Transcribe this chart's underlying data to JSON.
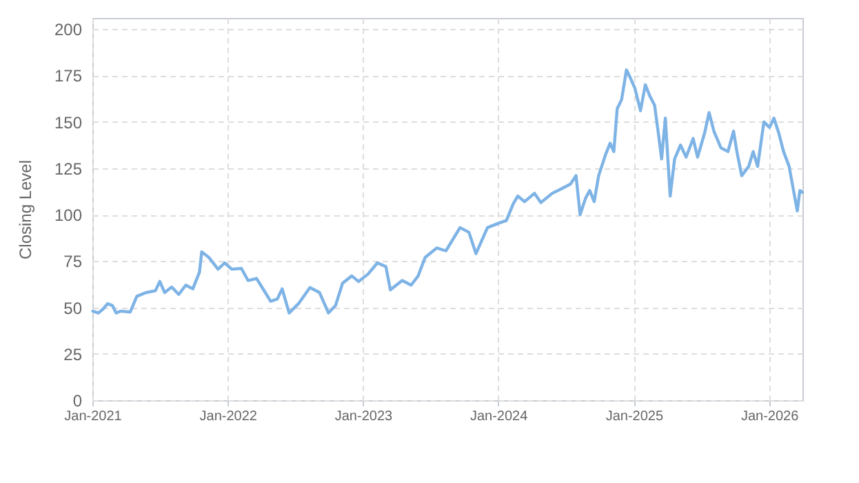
{
  "chart_data": {
    "type": "line",
    "ylabel": "Closing Level",
    "x": [
      "2021-01-02",
      "2021-01-17",
      "2021-01-29",
      "2021-02-11",
      "2021-02-24",
      "2021-03-06",
      "2021-03-18",
      "2021-04-13",
      "2021-05-01",
      "2021-05-26",
      "2021-06-20",
      "2021-07-02",
      "2021-07-15",
      "2021-08-03",
      "2021-08-22",
      "2021-09-10",
      "2021-09-29",
      "2021-10-17",
      "2021-10-23",
      "2021-11-11",
      "2021-12-06",
      "2021-12-24",
      "2022-01-12",
      "2022-02-07",
      "2022-02-25",
      "2022-03-20",
      "2022-04-08",
      "2022-04-27",
      "2022-05-15",
      "2022-05-28",
      "2022-06-16",
      "2022-07-11",
      "2022-08-11",
      "2022-09-06",
      "2022-09-30",
      "2022-10-19",
      "2022-11-07",
      "2022-12-02",
      "2022-12-20",
      "2023-01-15",
      "2023-02-09",
      "2023-03-04",
      "2023-03-16",
      "2023-04-17",
      "2023-05-11",
      "2023-05-30",
      "2023-06-18",
      "2023-07-19",
      "2023-08-13",
      "2023-09-20",
      "2023-10-14",
      "2023-11-02",
      "2023-12-03",
      "2024-01-04",
      "2024-01-23",
      "2024-02-11",
      "2024-02-23",
      "2024-03-12",
      "2024-04-08",
      "2024-04-25",
      "2024-05-26",
      "2024-06-20",
      "2024-07-14",
      "2024-07-29",
      "2024-08-09",
      "2024-08-24",
      "2024-09-04",
      "2024-09-16",
      "2024-09-28",
      "2024-10-17",
      "2024-10-29",
      "2024-11-08",
      "2024-11-17",
      "2024-11-29",
      "2024-12-12",
      "2024-12-22",
      "2025-01-04",
      "2025-01-19",
      "2025-02-01",
      "2025-02-13",
      "2025-02-26",
      "2025-03-08",
      "2025-03-17",
      "2025-03-27",
      "2025-04-09",
      "2025-04-21",
      "2025-05-07",
      "2025-05-22",
      "2025-06-10",
      "2025-06-22",
      "2025-07-11",
      "2025-07-23",
      "2025-08-05",
      "2025-08-24",
      "2025-09-12",
      "2025-09-27",
      "2025-10-06",
      "2025-10-19",
      "2025-11-07",
      "2025-11-19",
      "2025-12-01",
      "2025-12-18",
      "2026-01-02",
      "2026-01-14",
      "2026-01-27",
      "2026-02-09",
      "2026-02-24",
      "2026-03-06",
      "2026-03-18",
      "2026-03-25",
      "2026-04-01"
    ],
    "series": [
      {
        "color": "#7eb3e6",
        "values": [
          48,
          47,
          49,
          52,
          51,
          47,
          48,
          47.5,
          56,
          58,
          59,
          64,
          58,
          61,
          57,
          62,
          60,
          69,
          80,
          77,
          70.6,
          74,
          70.6,
          71,
          64.5,
          65.6,
          59.5,
          53.3,
          54.5,
          60,
          47,
          52,
          60.7,
          58,
          47,
          51,
          63,
          67,
          64,
          68,
          74,
          72,
          59.5,
          64.5,
          62,
          67,
          77,
          82,
          80.5,
          93,
          90.5,
          79,
          93,
          95.5,
          96.8,
          106,
          110,
          107,
          111.5,
          106.5,
          111.5,
          114,
          116.5,
          121,
          100,
          109,
          113,
          107,
          121,
          132.5,
          138.5,
          134,
          157,
          162,
          178,
          174,
          168,
          156,
          170,
          164,
          159,
          144,
          130,
          152,
          110,
          130,
          137.5,
          131,
          141,
          131,
          144,
          155,
          145,
          136,
          134,
          145,
          134,
          121,
          126,
          134,
          126,
          150,
          147,
          152,
          144,
          134,
          126,
          115,
          102,
          113,
          112
        ]
      }
    ],
    "xlim": [
      "2021-01-01",
      "2026-04-01"
    ],
    "xticks": [
      {
        "value": "2021-01-01",
        "label": "Jan-2021"
      },
      {
        "value": "2022-01-01",
        "label": "Jan-2022"
      },
      {
        "value": "2023-01-01",
        "label": "Jan-2023"
      },
      {
        "value": "2024-01-01",
        "label": "Jan-2024"
      },
      {
        "value": "2025-01-01",
        "label": "Jan-2025"
      },
      {
        "value": "2026-01-01",
        "label": "Jan-2026"
      }
    ],
    "ylim": [
      0,
      206
    ],
    "yticks": [
      0,
      25,
      50,
      75,
      100,
      125,
      150,
      175,
      200
    ],
    "grid": true,
    "marker": "none",
    "line_style": "solid"
  }
}
